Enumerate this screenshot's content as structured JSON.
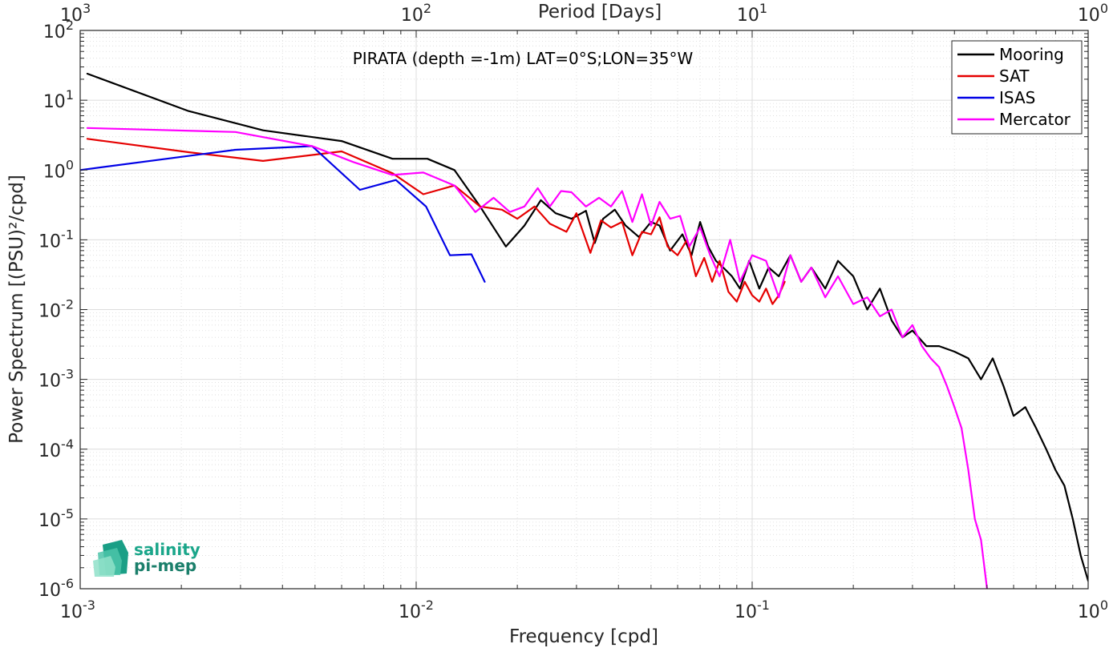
{
  "chart_data": {
    "type": "line",
    "title": "PIRATA (depth =-1m) LAT=0°S;LON=35°W",
    "xlabel": "Frequency [cpd]",
    "ylabel": "Power Spectrum [(PSU)²/cpd]",
    "x2label": "Period [Days]",
    "x_scale": "log",
    "y_scale": "log",
    "xlim": [
      0.001,
      1
    ],
    "ylim": [
      1e-06,
      100
    ],
    "grid": true,
    "legend_position": "top-right",
    "x_ticks": [
      {
        "value": 0.001,
        "base": "10",
        "exp": "-3"
      },
      {
        "value": 0.01,
        "base": "10",
        "exp": "-2"
      },
      {
        "value": 0.1,
        "base": "10",
        "exp": "-1"
      },
      {
        "value": 1,
        "base": "10",
        "exp": "0"
      }
    ],
    "x2_ticks": [
      {
        "value": 0.001,
        "base": "10",
        "exp": "3"
      },
      {
        "value": 0.01,
        "base": "10",
        "exp": "2"
      },
      {
        "value": 0.1,
        "base": "10",
        "exp": "1"
      },
      {
        "value": 1,
        "base": "10",
        "exp": "0"
      }
    ],
    "y_ticks": [
      {
        "value": 100,
        "base": "10",
        "exp": "2"
      },
      {
        "value": 10,
        "base": "10",
        "exp": "1"
      },
      {
        "value": 1,
        "base": "10",
        "exp": "0"
      },
      {
        "value": 0.1,
        "base": "10",
        "exp": "-1"
      },
      {
        "value": 0.01,
        "base": "10",
        "exp": "-2"
      },
      {
        "value": 0.001,
        "base": "10",
        "exp": "-3"
      },
      {
        "value": 0.0001,
        "base": "10",
        "exp": "-4"
      },
      {
        "value": 1e-05,
        "base": "10",
        "exp": "-5"
      },
      {
        "value": 1e-06,
        "base": "10",
        "exp": "-6"
      }
    ],
    "series": [
      {
        "name": "Mooring",
        "color": "#000000",
        "x": [
          0.00105,
          0.0021,
          0.0035,
          0.006,
          0.0085,
          0.0108,
          0.013,
          0.0155,
          0.0185,
          0.021,
          0.0235,
          0.026,
          0.029,
          0.032,
          0.034,
          0.036,
          0.039,
          0.042,
          0.046,
          0.05,
          0.053,
          0.057,
          0.062,
          0.066,
          0.07,
          0.074,
          0.078,
          0.082,
          0.087,
          0.092,
          0.098,
          0.105,
          0.112,
          0.12,
          0.13,
          0.14,
          0.15,
          0.165,
          0.18,
          0.2,
          0.22,
          0.24,
          0.26,
          0.28,
          0.3,
          0.33,
          0.36,
          0.4,
          0.44,
          0.48,
          0.52,
          0.56,
          0.6,
          0.65,
          0.7,
          0.75,
          0.8,
          0.85,
          0.9,
          0.95,
          1.0
        ],
        "y": [
          24,
          7,
          3.7,
          2.6,
          1.45,
          1.45,
          1.0,
          0.3,
          0.08,
          0.16,
          0.37,
          0.24,
          0.2,
          0.26,
          0.09,
          0.2,
          0.27,
          0.16,
          0.11,
          0.18,
          0.16,
          0.07,
          0.12,
          0.06,
          0.18,
          0.08,
          0.05,
          0.04,
          0.03,
          0.02,
          0.05,
          0.02,
          0.04,
          0.03,
          0.06,
          0.025,
          0.04,
          0.02,
          0.05,
          0.03,
          0.01,
          0.02,
          0.007,
          0.004,
          0.005,
          0.003,
          0.003,
          0.0025,
          0.002,
          0.001,
          0.002,
          0.0008,
          0.0003,
          0.0004,
          0.0002,
          0.0001,
          5e-05,
          3e-05,
          1e-05,
          3e-06,
          1.3e-06
        ]
      },
      {
        "name": "SAT",
        "color": "#e50000",
        "x": [
          0.00105,
          0.0021,
          0.0035,
          0.006,
          0.0085,
          0.0105,
          0.013,
          0.0155,
          0.018,
          0.02,
          0.0225,
          0.025,
          0.028,
          0.03,
          0.033,
          0.0355,
          0.038,
          0.041,
          0.044,
          0.047,
          0.05,
          0.053,
          0.056,
          0.06,
          0.064,
          0.068,
          0.072,
          0.076,
          0.08,
          0.085,
          0.09,
          0.095,
          0.1,
          0.105,
          0.11,
          0.115,
          0.12,
          0.125
        ],
        "y": [
          2.8,
          1.8,
          1.35,
          1.85,
          0.9,
          0.45,
          0.6,
          0.3,
          0.27,
          0.2,
          0.3,
          0.17,
          0.13,
          0.24,
          0.065,
          0.19,
          0.15,
          0.18,
          0.06,
          0.13,
          0.12,
          0.21,
          0.08,
          0.06,
          0.1,
          0.03,
          0.055,
          0.025,
          0.05,
          0.018,
          0.013,
          0.025,
          0.016,
          0.013,
          0.02,
          0.012,
          0.016,
          0.025
        ]
      },
      {
        "name": "ISAS",
        "color": "#0000e6",
        "x": [
          0.001,
          0.0029,
          0.0049,
          0.0068,
          0.0087,
          0.0107,
          0.0126,
          0.0146,
          0.016
        ],
        "y": [
          1.0,
          1.95,
          2.2,
          0.52,
          0.72,
          0.3,
          0.06,
          0.062,
          0.025
        ]
      },
      {
        "name": "Mercator",
        "color": "#ff00ff",
        "x": [
          0.00105,
          0.0029,
          0.0049,
          0.0065,
          0.0085,
          0.0105,
          0.013,
          0.015,
          0.017,
          0.019,
          0.021,
          0.023,
          0.025,
          0.027,
          0.029,
          0.032,
          0.035,
          0.038,
          0.041,
          0.044,
          0.047,
          0.05,
          0.053,
          0.057,
          0.061,
          0.065,
          0.07,
          0.075,
          0.08,
          0.086,
          0.092,
          0.1,
          0.11,
          0.12,
          0.13,
          0.14,
          0.15,
          0.165,
          0.18,
          0.2,
          0.22,
          0.24,
          0.26,
          0.28,
          0.3,
          0.32,
          0.34,
          0.36,
          0.38,
          0.4,
          0.42,
          0.44,
          0.46,
          0.48,
          0.5
        ],
        "y": [
          4.0,
          3.5,
          2.2,
          1.3,
          0.85,
          0.92,
          0.6,
          0.25,
          0.4,
          0.25,
          0.3,
          0.55,
          0.3,
          0.5,
          0.48,
          0.3,
          0.4,
          0.3,
          0.5,
          0.18,
          0.45,
          0.16,
          0.35,
          0.2,
          0.22,
          0.08,
          0.15,
          0.06,
          0.03,
          0.1,
          0.025,
          0.06,
          0.05,
          0.015,
          0.06,
          0.025,
          0.04,
          0.015,
          0.03,
          0.012,
          0.015,
          0.008,
          0.01,
          0.004,
          0.006,
          0.003,
          0.002,
          0.0015,
          0.0008,
          0.0004,
          0.0002,
          5e-05,
          1e-05,
          5e-06,
          1e-06
        ]
      }
    ]
  },
  "logo": {
    "line1": "salinity",
    "line2": "pi-mep",
    "color": "#1aa68a"
  }
}
